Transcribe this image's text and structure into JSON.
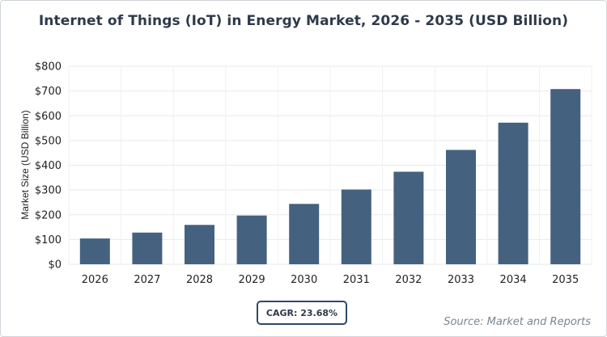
{
  "chart_data": {
    "type": "bar",
    "title": "Internet of Things (IoT) in Energy Market, 2026 - 2035 (USD Billion)",
    "ylabel": "Market Size (USD Billion)",
    "xlabel": "",
    "categories": [
      "2026",
      "2027",
      "2028",
      "2029",
      "2030",
      "2031",
      "2032",
      "2033",
      "2034",
      "2035"
    ],
    "values": [
      104,
      128,
      159,
      197,
      244,
      302,
      374,
      462,
      572,
      708
    ],
    "ylim": [
      0,
      800
    ],
    "yticks": [
      0,
      100,
      200,
      300,
      400,
      500,
      600,
      700,
      800
    ],
    "ytick_labels": [
      "$0",
      "$100",
      "$200",
      "$300",
      "$400",
      "$500",
      "$600",
      "$700",
      "$800"
    ],
    "grid": true,
    "bar_color": "#44627f"
  },
  "badge": {
    "cagr": "CAGR: 23.68%"
  },
  "source": "Source: Market and Reports"
}
